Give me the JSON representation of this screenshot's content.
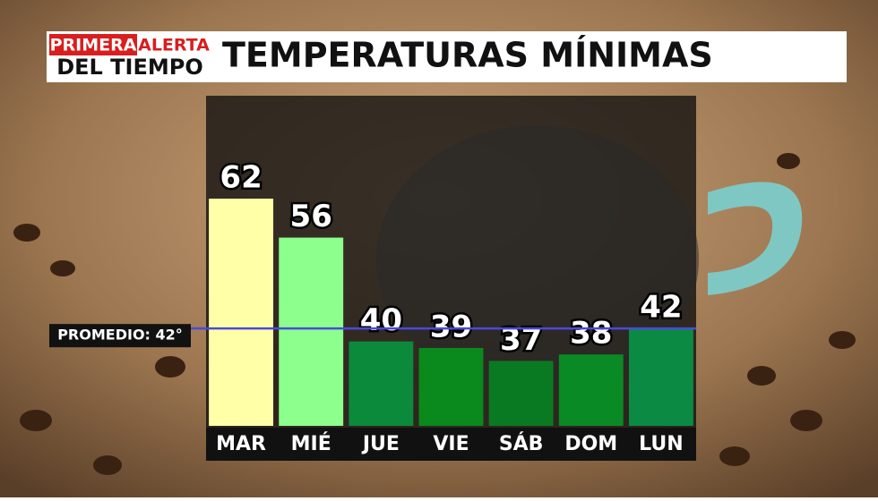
{
  "logo": {
    "line1a": "PRIMERA",
    "line1b": "ALERTA",
    "line2": "DEL TIEMPO"
  },
  "chart_data": {
    "type": "bar",
    "title": "TEMPERATURAS MÍNIMAS",
    "categories": [
      "MAR",
      "MIÉ",
      "JUE",
      "VIE",
      "SÁB",
      "DOM",
      "LUN"
    ],
    "values": [
      62,
      56,
      40,
      39,
      37,
      38,
      42
    ],
    "colors": [
      "#ffffa8",
      "#8cff8c",
      "#0b8a3c",
      "#0a8a1c",
      "#0a7a22",
      "#0a8a24",
      "#0b8a44"
    ],
    "ylim": [
      27,
      70
    ],
    "reference_line": {
      "value": 42,
      "label": "PROMEDIO: 42°",
      "color": "#4a4ad8"
    }
  }
}
